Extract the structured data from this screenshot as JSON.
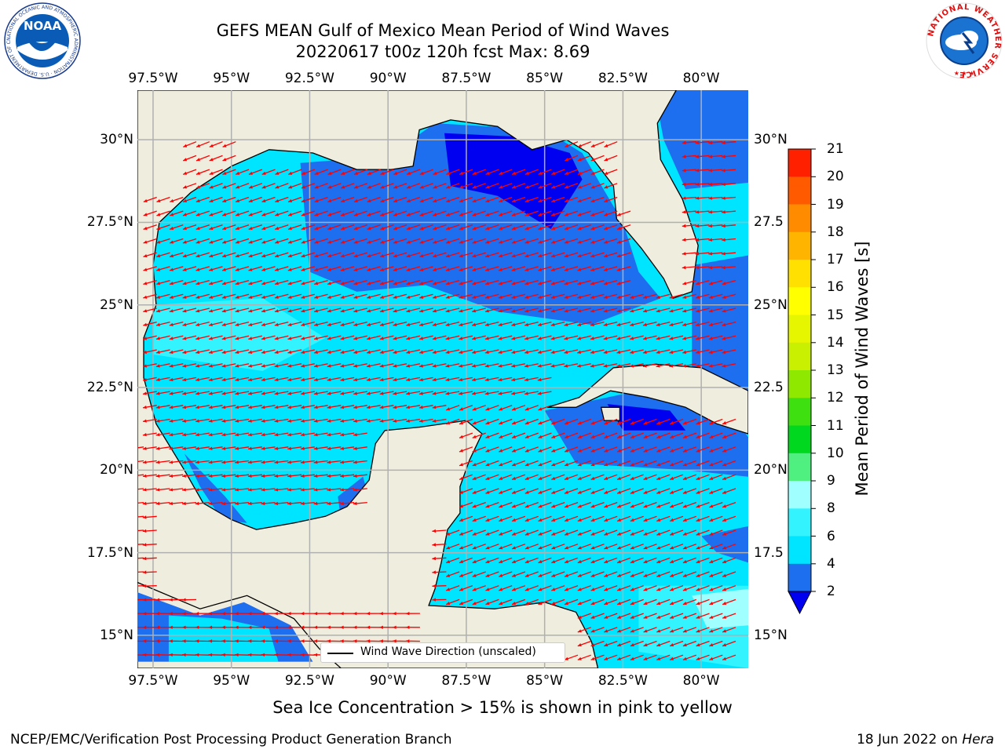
{
  "title": {
    "line1": "GEFS MEAN Gulf of Mexico Mean Period of Wind Waves",
    "line2": "20220617 t00z 120h fcst   Max: 8.69"
  },
  "map": {
    "lon_ticks": [
      "97.5°W",
      "95°W",
      "92.5°W",
      "90°W",
      "87.5°W",
      "85°W",
      "82.5°W",
      "80°W"
    ],
    "lat_ticks_left": [
      "30°N",
      "27.5°N",
      "25°N",
      "22.5°N",
      "20°N",
      "17.5°N",
      "15°N"
    ],
    "lat_ticks_right": [
      "30°N",
      "27.5",
      "25°N",
      "22.5",
      "20°N",
      "17.5",
      "15°N"
    ],
    "lon_range": [
      -98,
      -78.5
    ],
    "lat_range": [
      14,
      31.5
    ],
    "land_color": "#efedde",
    "grid": "on",
    "legend": "Wind Wave Direction (unscaled)",
    "arrow_color": "#ff0000"
  },
  "colorbar": {
    "title": "Mean Period of Wind Waves [s]",
    "levels": [
      "2",
      "4",
      "6",
      "8",
      "9",
      "10",
      "11",
      "12",
      "13",
      "14",
      "15",
      "16",
      "17",
      "18",
      "19",
      "20",
      "21"
    ],
    "colors": [
      "#1e6ef0",
      "#00e5ff",
      "#33f3ff",
      "#a0ffff",
      "#50f080",
      "#00d820",
      "#3fe010",
      "#8fe800",
      "#c8f000",
      "#e6f500",
      "#ffff00",
      "#ffe000",
      "#ffb400",
      "#ff8c00",
      "#ff5a00",
      "#ff2000"
    ],
    "under_color": "#0000f0"
  },
  "note": "Sea Ice Concentration > 15% is shown in pink to yellow",
  "footer": {
    "left": "NCEP/EMC/Verification Post Processing Product Generation Branch",
    "date": "18 Jun 2022 on",
    "machine": "Hera"
  },
  "logos": {
    "noaa_text": "NOAA",
    "noaa_ring": "NATIONAL OCEANIC AND ATMOSPHERIC ADMINISTRATION · U.S. DEPARTMENT OF COMMERCE",
    "nws_ring": "NATIONAL WEATHER SERVICE"
  }
}
